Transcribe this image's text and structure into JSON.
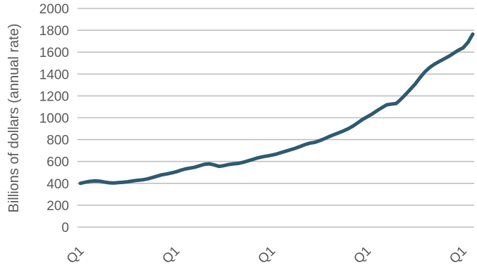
{
  "chart_data": {
    "type": "line",
    "title": "",
    "ylabel": "Billions of dollars (annual rate)",
    "xlabel": "",
    "ylim": [
      0,
      2000
    ],
    "yticks": [
      0,
      200,
      400,
      600,
      800,
      1000,
      1200,
      1400,
      1600,
      1800,
      2000
    ],
    "grid": true,
    "legend": "none",
    "line_color": "#2e5a70",
    "x_tick_labels": [
      "Q1",
      "Q1",
      "Q1",
      "Q1",
      "Q1"
    ],
    "x_tick_indices": [
      0,
      20,
      40,
      60,
      80
    ],
    "series": [
      {
        "values": [
          400,
          410,
          418,
          422,
          420,
          412,
          405,
          403,
          407,
          410,
          415,
          422,
          428,
          432,
          440,
          452,
          465,
          478,
          485,
          495,
          505,
          520,
          532,
          540,
          548,
          562,
          575,
          578,
          568,
          555,
          562,
          572,
          578,
          582,
          592,
          605,
          618,
          632,
          642,
          650,
          658,
          668,
          682,
          695,
          708,
          722,
          738,
          755,
          768,
          775,
          790,
          808,
          828,
          845,
          862,
          880,
          900,
          925,
          955,
          985,
          1010,
          1035,
          1065,
          1092,
          1118,
          1125,
          1130,
          1170,
          1215,
          1262,
          1310,
          1368,
          1420,
          1460,
          1490,
          1515,
          1538,
          1562,
          1590,
          1618,
          1640,
          1690,
          1765
        ]
      }
    ]
  }
}
